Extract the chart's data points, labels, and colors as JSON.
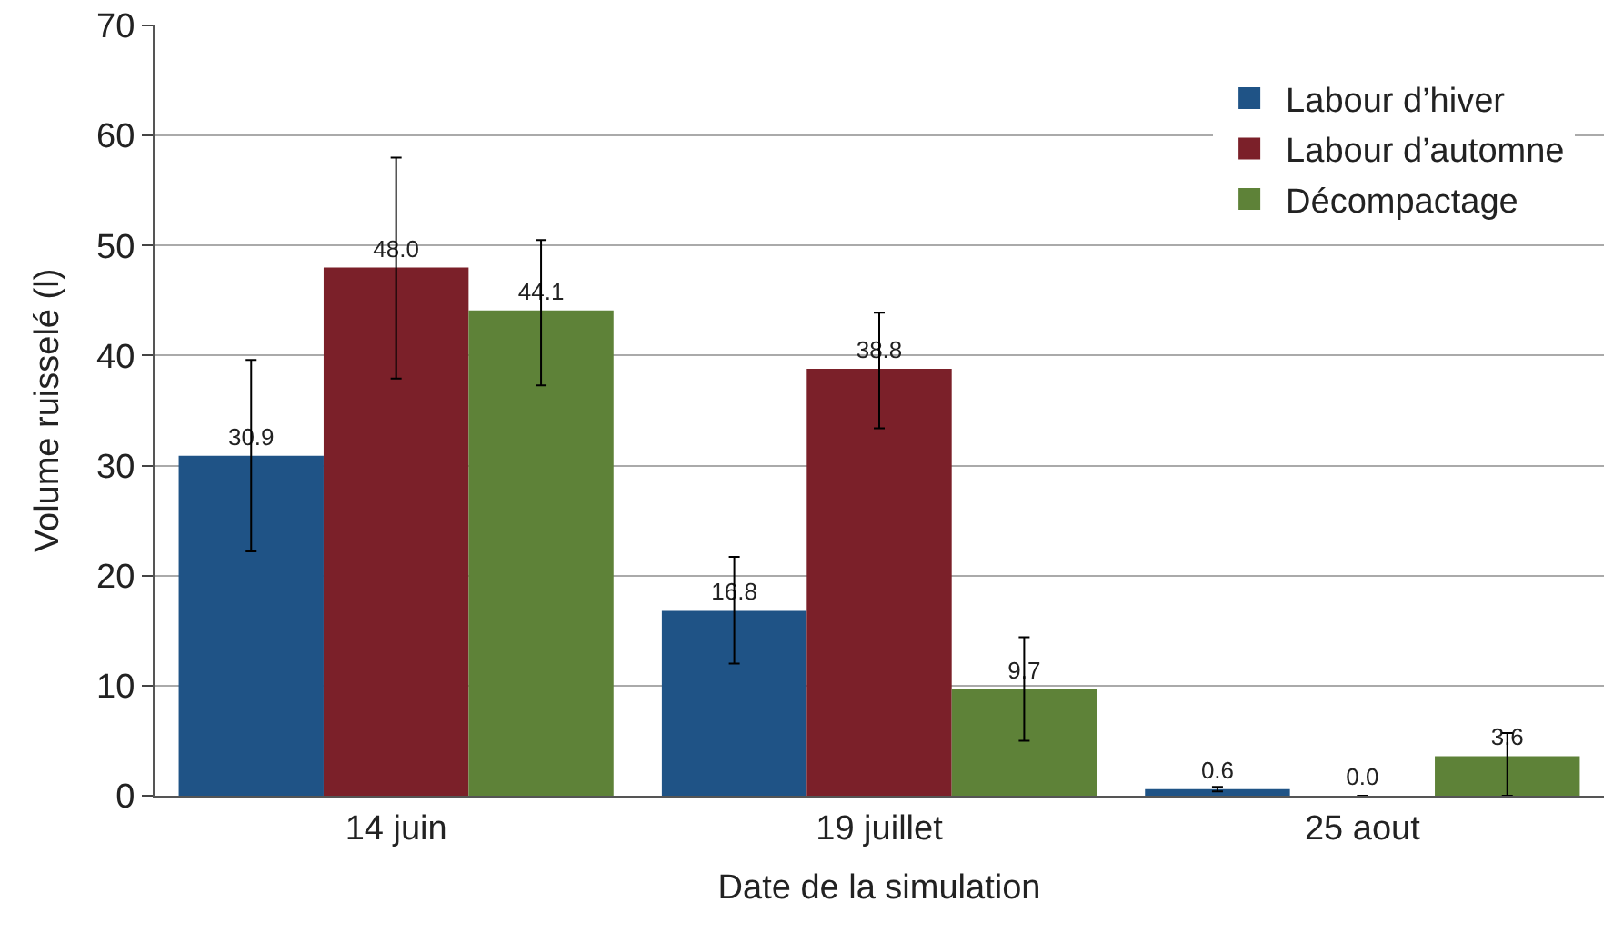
{
  "chart_data": {
    "type": "bar",
    "xlabel": "Date de la simulation",
    "ylabel": "Volume ruisselé (l)",
    "categories": [
      "14 juin",
      "19 juillet",
      "25 aout"
    ],
    "series": [
      {
        "name": "Labour d’hiver",
        "color": "#1f5386",
        "values": [
          30.9,
          16.8,
          0.6
        ],
        "value_labels": [
          "30.9",
          "16.8",
          "0.6"
        ],
        "errors": [
          [
            22.2,
            39.6
          ],
          [
            12.0,
            21.7
          ],
          [
            0.4,
            0.8
          ]
        ]
      },
      {
        "name": "Labour d’automne",
        "color": "#7b2029",
        "values": [
          48.0,
          38.8,
          0.0
        ],
        "value_labels": [
          "48.0",
          "38.8",
          "0.0"
        ],
        "errors": [
          [
            37.9,
            58.0
          ],
          [
            33.4,
            43.9
          ],
          null
        ]
      },
      {
        "name": "Décompactage",
        "color": "#5e8238",
        "values": [
          44.1,
          9.7,
          3.6
        ],
        "value_labels": [
          "44.1",
          "9.7",
          "3.6"
        ],
        "errors": [
          [
            37.3,
            50.5
          ],
          [
            5.0,
            14.4
          ],
          [
            0.0,
            5.7
          ]
        ]
      }
    ],
    "ylim": [
      0,
      70
    ],
    "yticks": [
      0,
      10,
      20,
      30,
      40,
      50,
      60,
      70
    ],
    "grid": "y",
    "legend": "top right"
  }
}
